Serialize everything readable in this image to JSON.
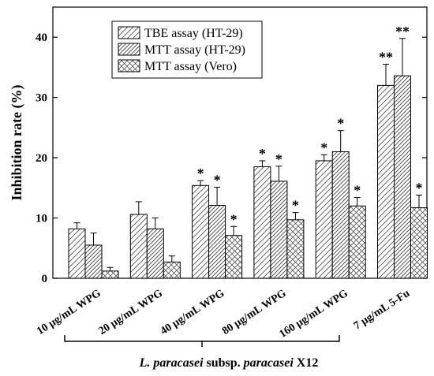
{
  "chart_data": {
    "type": "bar",
    "ylabel": "Inhibition rate (%)",
    "ylim": [
      0,
      45
    ],
    "yticks": [
      0,
      10,
      20,
      30,
      40
    ],
    "grid": false,
    "legend_position": "top-center",
    "categories": [
      "10 μg/mL WPG",
      "20 μg/mL WPG",
      "40 μg/mL WPG",
      "80 μg/mL WPG",
      "160 μg/mL WPG",
      "7 μg/mL 5-Fu"
    ],
    "series": [
      {
        "name": "TBE assay (HT-29)",
        "pattern": "diagonal",
        "values": [
          8.2,
          10.6,
          15.4,
          18.5,
          19.5,
          32.0
        ],
        "errors": [
          1.0,
          2.1,
          0.8,
          1.0,
          1.0,
          3.5
        ],
        "markers": [
          "",
          "",
          "*",
          "*",
          "*",
          "**"
        ]
      },
      {
        "name": "MTT assay (HT-29)",
        "pattern": "diagonal-dense",
        "values": [
          5.5,
          8.2,
          12.1,
          16.1,
          21.0,
          33.6
        ],
        "errors": [
          2.0,
          1.8,
          3.0,
          2.5,
          3.5,
          6.2
        ],
        "markers": [
          "",
          "",
          "*",
          "*",
          "*",
          "**"
        ]
      },
      {
        "name": "MTT assay (Vero)",
        "pattern": "crosshatch",
        "values": [
          1.2,
          2.7,
          7.1,
          9.7,
          12.0,
          11.7
        ],
        "errors": [
          0.6,
          1.0,
          1.5,
          1.2,
          1.4,
          2.1
        ],
        "markers": [
          "",
          "",
          "*",
          "*",
          "*",
          "*"
        ]
      }
    ],
    "group_bracket_label_parts": [
      {
        "text": "L. paracasei",
        "italic": true
      },
      {
        "text": " subsp. ",
        "italic": false
      },
      {
        "text": "paracasei",
        "italic": true
      },
      {
        "text": " X12",
        "italic": false
      }
    ]
  }
}
